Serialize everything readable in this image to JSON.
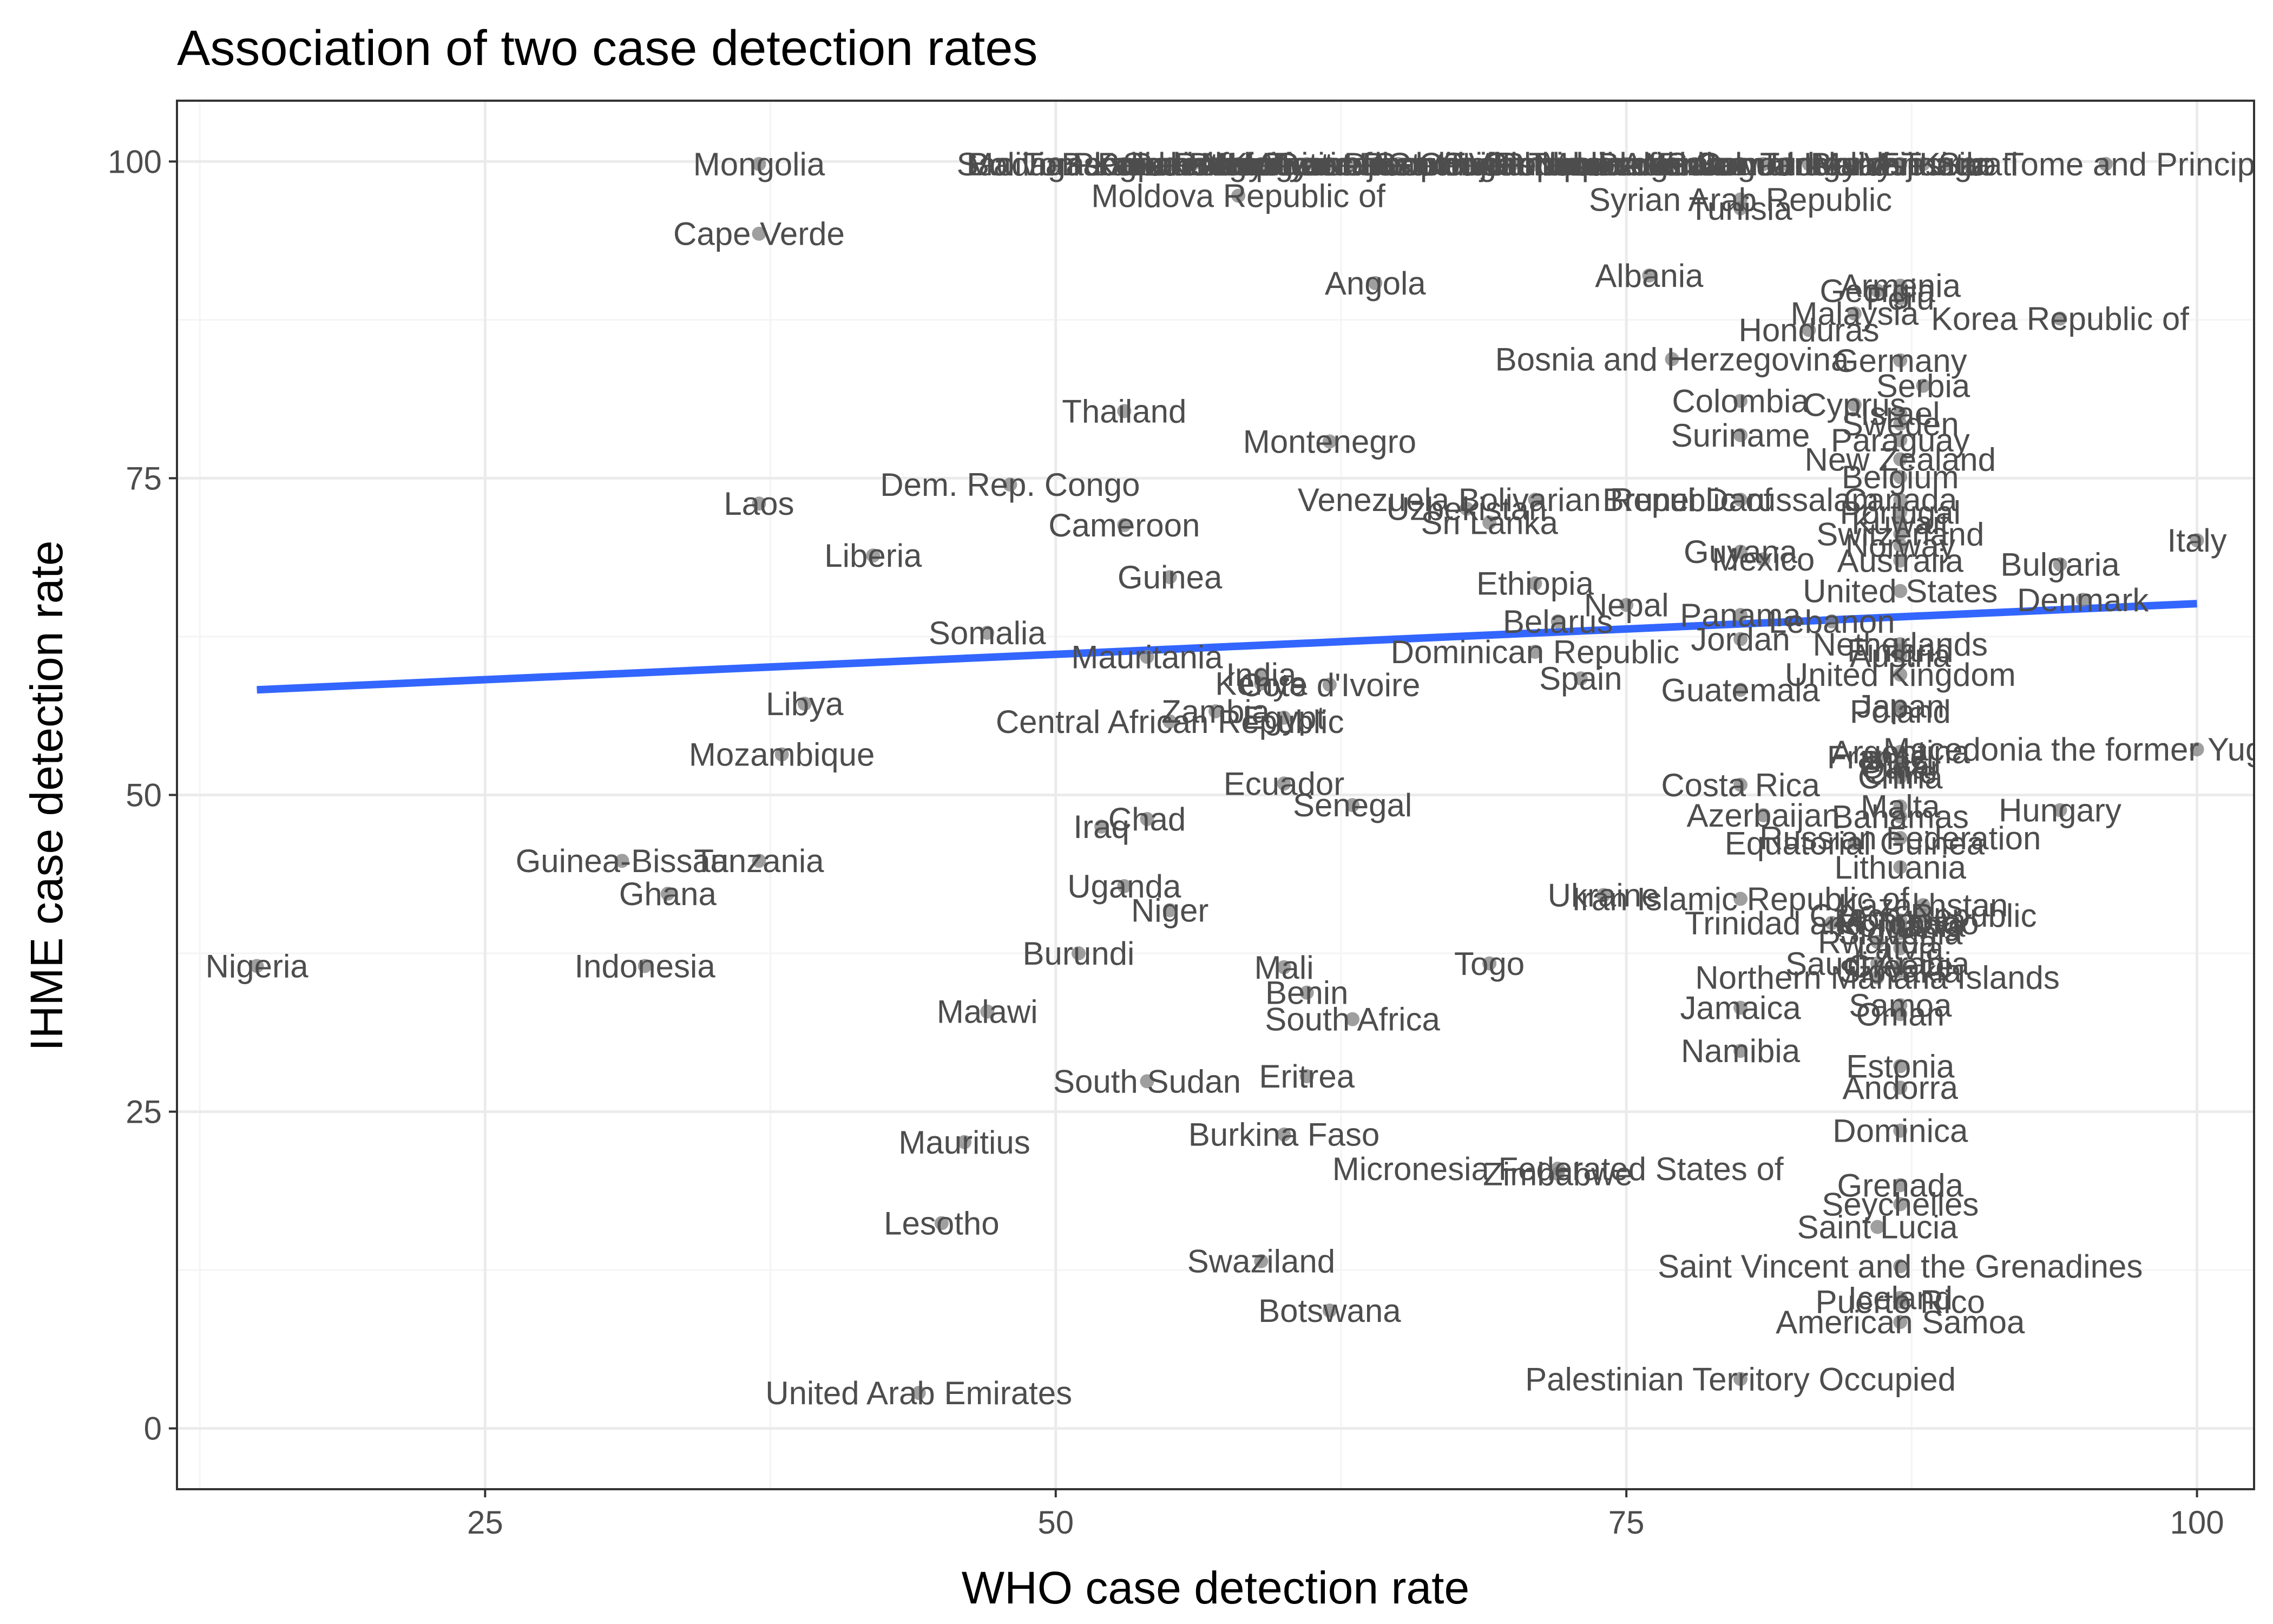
{
  "chart_data": {
    "type": "scatter",
    "title": "Association of two case detection rates",
    "xlabel": "WHO case detection rate",
    "ylabel": "IHME case detection rate",
    "xlim": [
      11.5,
      102.5
    ],
    "ylim": [
      -4.8,
      104.8
    ],
    "x_ticks": [
      25,
      50,
      75,
      100
    ],
    "y_ticks": [
      0,
      25,
      50,
      75,
      100
    ],
    "grid": true,
    "legend": "none",
    "colors": {
      "point": "#7f7f7f",
      "label": "#4d4d4d",
      "trend": "#3366ff",
      "grid_major": "#ebebeb",
      "grid_minor": "#f4f4f4",
      "panel_border": "#333333"
    },
    "trend_line": {
      "method": "linear",
      "x": [
        15,
        100
      ],
      "y": [
        58.3,
        65.1
      ]
    },
    "points": [
      {
        "label": "Nigeria",
        "x": 15,
        "y": 36.5
      },
      {
        "label": "Guinea-Bissau",
        "x": 31,
        "y": 44.8
      },
      {
        "label": "Ghana",
        "x": 33,
        "y": 42.2
      },
      {
        "label": "Indonesia",
        "x": 32,
        "y": 36.5
      },
      {
        "label": "Tanzania",
        "x": 37,
        "y": 44.8
      },
      {
        "label": "Mongolia",
        "x": 37,
        "y": 99.8
      },
      {
        "label": "Cape Verde",
        "x": 37,
        "y": 94.3
      },
      {
        "label": "Laos",
        "x": 37,
        "y": 73
      },
      {
        "label": "Mozambique",
        "x": 38,
        "y": 53.2
      },
      {
        "label": "Libya",
        "x": 39,
        "y": 57.2
      },
      {
        "label": "Liberia",
        "x": 42,
        "y": 68.9
      },
      {
        "label": "United Arab Emirates",
        "x": 44,
        "y": 2.8
      },
      {
        "label": "Lesotho",
        "x": 45,
        "y": 16.2
      },
      {
        "label": "Mauritius",
        "x": 46,
        "y": 22.6
      },
      {
        "label": "Somalia",
        "x": 47,
        "y": 62.8
      },
      {
        "label": "Malawi",
        "x": 47,
        "y": 32.9
      },
      {
        "label": "Dem. Rep. Congo",
        "x": 48,
        "y": 74.5
      },
      {
        "label": "Madagascar",
        "x": 50,
        "y": 99.8
      },
      {
        "label": "Burundi",
        "x": 51,
        "y": 37.5
      },
      {
        "label": "Iraq",
        "x": 52,
        "y": 47.5
      },
      {
        "label": "Thailand",
        "x": 53,
        "y": 80.3
      },
      {
        "label": "Cameroon",
        "x": 53,
        "y": 71.3
      },
      {
        "label": "Uganda",
        "x": 53,
        "y": 42.8
      },
      {
        "label": "Chad",
        "x": 54,
        "y": 48.1
      },
      {
        "label": "Mauritania",
        "x": 54,
        "y": 60.9
      },
      {
        "label": "South Sudan",
        "x": 54,
        "y": 27.4
      },
      {
        "label": "Niger",
        "x": 55,
        "y": 40.9
      },
      {
        "label": "Guinea",
        "x": 55,
        "y": 67.2
      },
      {
        "label": "Central African Republic",
        "x": 55,
        "y": 55.8
      },
      {
        "label": "Zambia",
        "x": 57,
        "y": 56.6
      },
      {
        "label": "Moldova Republic of",
        "x": 58,
        "y": 97.3
      },
      {
        "label": "India",
        "x": 59,
        "y": 59.5
      },
      {
        "label": "Swaziland",
        "x": 59,
        "y": 13.2
      },
      {
        "label": "Kenya",
        "x": 59,
        "y": 58.8
      },
      {
        "label": "Egypt",
        "x": 60,
        "y": 56.1
      },
      {
        "label": "Ecuador",
        "x": 60,
        "y": 50.9
      },
      {
        "label": "Mali",
        "x": 60,
        "y": 36.4
      },
      {
        "label": "Burkina Faso",
        "x": 60,
        "y": 23.2
      },
      {
        "label": "Benin",
        "x": 61,
        "y": 34.4
      },
      {
        "label": "Eritrea",
        "x": 61,
        "y": 27.8
      },
      {
        "label": "Montenegro",
        "x": 62,
        "y": 77.9
      },
      {
        "label": "Cote d'Ivoire",
        "x": 62,
        "y": 58.7
      },
      {
        "label": "Botswana",
        "x": 62,
        "y": 9.3
      },
      {
        "label": "Senegal",
        "x": 63,
        "y": 49.2
      },
      {
        "label": "South Africa",
        "x": 63,
        "y": 32.3
      },
      {
        "label": "Angola",
        "x": 64,
        "y": 90.4
      },
      {
        "label": "Uzbekistan",
        "x": 68,
        "y": 72.6
      },
      {
        "label": "Sri Lanka",
        "x": 69,
        "y": 71.5
      },
      {
        "label": "Togo",
        "x": 69,
        "y": 36.7
      },
      {
        "label": "Venezuela Bolivarian Republic of",
        "x": 71,
        "y": 73.3
      },
      {
        "label": "Ethiopia",
        "x": 71,
        "y": 66.7
      },
      {
        "label": "Dominican Republic",
        "x": 71,
        "y": 61.3
      },
      {
        "label": "Micronesia Federated States of",
        "x": 72,
        "y": 20.5
      },
      {
        "label": "Belarus",
        "x": 72,
        "y": 63.7
      },
      {
        "label": "Zimbabwe",
        "x": 72,
        "y": 20.1
      },
      {
        "label": "Spain",
        "x": 73,
        "y": 59.2
      },
      {
        "label": "Ukraine",
        "x": 74,
        "y": 42.1
      },
      {
        "label": "Nepal",
        "x": 75,
        "y": 65
      },
      {
        "label": "Albania",
        "x": 76,
        "y": 91
      },
      {
        "label": "Bosnia and Herzegovina",
        "x": 77,
        "y": 84.4
      },
      {
        "label": "Iran Islamic Republic of",
        "x": 80,
        "y": 41.8
      },
      {
        "label": "Syrian Arab Republic",
        "x": 80,
        "y": 97
      },
      {
        "label": "Tunisia",
        "x": 80,
        "y": 96.3
      },
      {
        "label": "Colombia",
        "x": 80,
        "y": 81.1
      },
      {
        "label": "Suriname",
        "x": 80,
        "y": 78.4
      },
      {
        "label": "Brunei Darussalam",
        "x": 80,
        "y": 73.3
      },
      {
        "label": "Guyana",
        "x": 80,
        "y": 69.2
      },
      {
        "label": "Panama",
        "x": 80,
        "y": 64.2
      },
      {
        "label": "Jordan",
        "x": 80,
        "y": 62.3
      },
      {
        "label": "Guatemala",
        "x": 80,
        "y": 58.3
      },
      {
        "label": "Costa Rica",
        "x": 80,
        "y": 50.8
      },
      {
        "label": "Jamaica",
        "x": 80,
        "y": 33.2
      },
      {
        "label": "Namibia",
        "x": 80,
        "y": 29.8
      },
      {
        "label": "Palestinian Territory Occupied",
        "x": 80,
        "y": 3.9
      },
      {
        "label": "Mexico",
        "x": 81,
        "y": 68.6
      },
      {
        "label": "Azerbaijan",
        "x": 81,
        "y": 48.4
      },
      {
        "label": "Honduras",
        "x": 83,
        "y": 86.7
      },
      {
        "label": "Lebanon",
        "x": 84,
        "y": 63.7
      },
      {
        "label": "Trinidad and Tobago",
        "x": 84,
        "y": 39.9
      },
      {
        "label": "Malaysia",
        "x": 85,
        "y": 88
      },
      {
        "label": "Equatorial Guinea",
        "x": 85,
        "y": 46.2
      },
      {
        "label": "Cyprus",
        "x": 85,
        "y": 80.8
      },
      {
        "label": "Saint Lucia",
        "x": 86,
        "y": 15.9
      },
      {
        "label": "Georgia",
        "x": 86,
        "y": 89.8
      },
      {
        "label": "Northern Mariana Islands",
        "x": 86,
        "y": 35.6
      },
      {
        "label": "Sao Tome and Principe",
        "x": 96,
        "y": 99.8
      },
      {
        "label": "Armenia",
        "x": 87,
        "y": 90.2
      },
      {
        "label": "Peru",
        "x": 87,
        "y": 89.2
      },
      {
        "label": "Germany",
        "x": 87,
        "y": 84.3
      },
      {
        "label": "Serbia",
        "x": 88,
        "y": 82.3
      },
      {
        "label": "Israel",
        "x": 87,
        "y": 80.1
      },
      {
        "label": "Sweden",
        "x": 87,
        "y": 79.3
      },
      {
        "label": "Paraguay",
        "x": 87,
        "y": 78
      },
      {
        "label": "New Zealand",
        "x": 87,
        "y": 76.5
      },
      {
        "label": "Belgium",
        "x": 87,
        "y": 75.1
      },
      {
        "label": "Canada",
        "x": 87,
        "y": 73.3
      },
      {
        "label": "Portugal",
        "x": 87,
        "y": 72.3
      },
      {
        "label": "Kuwait",
        "x": 87,
        "y": 71.5
      },
      {
        "label": "Switzerland",
        "x": 87,
        "y": 70.6
      },
      {
        "label": "Norway",
        "x": 87,
        "y": 69.7
      },
      {
        "label": "Australia",
        "x": 87,
        "y": 68.5
      },
      {
        "label": "United States",
        "x": 87,
        "y": 66.1
      },
      {
        "label": "Netherlands",
        "x": 87,
        "y": 61.9
      },
      {
        "label": "Finland",
        "x": 87,
        "y": 61.4
      },
      {
        "label": "Austria",
        "x": 87,
        "y": 61
      },
      {
        "label": "United Kingdom",
        "x": 87,
        "y": 59.5
      },
      {
        "label": "Japan",
        "x": 87,
        "y": 57
      },
      {
        "label": "Poland",
        "x": 87,
        "y": 56.6
      },
      {
        "label": "Argentina",
        "x": 87,
        "y": 53.4
      },
      {
        "label": "France",
        "x": 86,
        "y": 53
      },
      {
        "label": "Brazil",
        "x": 87,
        "y": 52.6
      },
      {
        "label": "Qatar",
        "x": 87,
        "y": 52.2
      },
      {
        "label": "Chile",
        "x": 87,
        "y": 51.8
      },
      {
        "label": "China",
        "x": 87,
        "y": 51.4
      },
      {
        "label": "Malta",
        "x": 87,
        "y": 49.1
      },
      {
        "label": "Bahamas",
        "x": 87,
        "y": 48.3
      },
      {
        "label": "Russian Federation",
        "x": 87,
        "y": 46.6
      },
      {
        "label": "Lithuania",
        "x": 87,
        "y": 44.3
      },
      {
        "label": "Kazakhstan",
        "x": 88,
        "y": 41.3
      },
      {
        "label": "Czech Republic",
        "x": 88,
        "y": 40.5
      },
      {
        "label": "Mongolia",
        "x": 87,
        "y": 40.1
      },
      {
        "label": "Romania",
        "x": 87,
        "y": 39.7
      },
      {
        "label": "Slovenia",
        "x": 87,
        "y": 39.1
      },
      {
        "label": "Rwanda",
        "x": 86,
        "y": 38.4
      },
      {
        "label": "Latvia",
        "x": 87,
        "y": 37.9
      },
      {
        "label": "Estonia",
        "x": 87,
        "y": 28.6
      },
      {
        "label": "Saudi Arabia",
        "x": 86,
        "y": 36.7
      },
      {
        "label": "Greece",
        "x": 87,
        "y": 36.5
      },
      {
        "label": "Slovakia",
        "x": 87,
        "y": 36.1
      },
      {
        "label": "Samoa",
        "x": 87,
        "y": 33.4
      },
      {
        "label": "Oman",
        "x": 87,
        "y": 32.7
      },
      {
        "label": "Andorra",
        "x": 87,
        "y": 26.9
      },
      {
        "label": "Dominica",
        "x": 87,
        "y": 23.5
      },
      {
        "label": "Grenada",
        "x": 87,
        "y": 19.2
      },
      {
        "label": "Seychelles",
        "x": 87,
        "y": 17.7
      },
      {
        "label": "Saint Vincent and the Grenadines",
        "x": 87,
        "y": 12.8
      },
      {
        "label": "Iceland",
        "x": 87,
        "y": 10.3
      },
      {
        "label": "Puerto Rico",
        "x": 87,
        "y": 10
      },
      {
        "label": "American Samoa",
        "x": 87,
        "y": 8.4
      },
      {
        "label": "Korea Republic of",
        "x": 94,
        "y": 87.6
      },
      {
        "label": "Bulgaria",
        "x": 94,
        "y": 68.2
      },
      {
        "label": "Denmark",
        "x": 95,
        "y": 65.4
      },
      {
        "label": "Hungary",
        "x": 94,
        "y": 48.8
      },
      {
        "label": "Italy",
        "x": 100,
        "y": 70.1
      },
      {
        "label": "Macedonia the former Yugoslav Republic of",
        "x": 100,
        "y": 53.6
      },
      {
        "label": "Sao Tome and Principe",
        "x": 53,
        "y": 99.8
      },
      {
        "label": "Bangladesh",
        "x": 54,
        "y": 99.8
      },
      {
        "label": "Bolivia Plurinational State of",
        "x": 55,
        "y": 99.8
      },
      {
        "label": "Pakistan",
        "x": 56,
        "y": 99.8
      },
      {
        "label": "Sierra Leone",
        "x": 57,
        "y": 99.8
      },
      {
        "label": "Papua New Guinea",
        "x": 58,
        "y": 99.8
      },
      {
        "label": "Haiti",
        "x": 59,
        "y": 99.8
      },
      {
        "label": "Afghanistan",
        "x": 60,
        "y": 99.8
      },
      {
        "label": "Kyrgyzstan",
        "x": 61,
        "y": 99.8
      },
      {
        "label": "Myanmar",
        "x": 62,
        "y": 99.8
      },
      {
        "label": "Timor-Leste",
        "x": 63,
        "y": 99.8
      },
      {
        "label": "Korea Democratic People's Republic of",
        "x": 64,
        "y": 99.8
      },
      {
        "label": "Djibouti",
        "x": 65,
        "y": 99.8
      },
      {
        "label": "Gabon",
        "x": 66,
        "y": 99.8
      },
      {
        "label": "Gambia",
        "x": 67,
        "y": 99.8
      },
      {
        "label": "Congo",
        "x": 68,
        "y": 99.8
      },
      {
        "label": "Sudan",
        "x": 69,
        "y": 99.8
      },
      {
        "label": "Tajikistan",
        "x": 70,
        "y": 99.8
      },
      {
        "label": "Viet Nam",
        "x": 71,
        "y": 99.8
      },
      {
        "label": "Cambodia",
        "x": 72,
        "y": 99.8
      },
      {
        "label": "Philippines",
        "x": 73,
        "y": 99.8
      },
      {
        "label": "Morocco",
        "x": 74,
        "y": 99.8
      },
      {
        "label": "Turkmenistan",
        "x": 75,
        "y": 99.8
      },
      {
        "label": "Bhutan",
        "x": 76,
        "y": 99.8
      },
      {
        "label": "Algeria",
        "x": 77,
        "y": 99.8
      },
      {
        "label": "Yemen",
        "x": 78,
        "y": 99.8
      },
      {
        "label": "Nicaragua",
        "x": 79,
        "y": 99.8
      },
      {
        "label": "El Salvador",
        "x": 80,
        "y": 99.8
      },
      {
        "label": "Comoros",
        "x": 81,
        "y": 99.8
      },
      {
        "label": "Solomon Islands",
        "x": 82,
        "y": 99.8
      },
      {
        "label": "Turkey",
        "x": 83,
        "y": 99.8
      },
      {
        "label": "Uruguay",
        "x": 84,
        "y": 99.8
      },
      {
        "label": "Belize",
        "x": 85,
        "y": 99.8
      },
      {
        "label": "Maldives",
        "x": 86,
        "y": 99.8
      },
      {
        "label": "Fiji",
        "x": 87,
        "y": 99.8
      },
      {
        "label": "Vanuatu",
        "x": 88,
        "y": 99.8
      },
      {
        "label": "Tonga",
        "x": 89,
        "y": 99.8
      },
      {
        "label": "Kiribati",
        "x": 90,
        "y": 99.8
      }
    ]
  }
}
